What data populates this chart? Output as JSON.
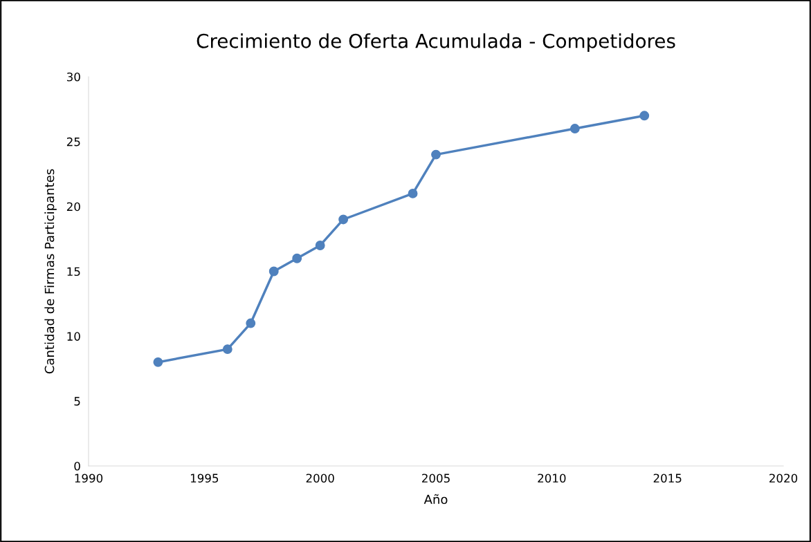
{
  "chart_data": {
    "type": "line",
    "title": "Crecimiento de Oferta Acumulada - Competidores",
    "xlabel": "Año",
    "ylabel": "Cantidad de Firmas Participantes",
    "x": [
      1993,
      1996,
      1997,
      1998,
      1999,
      2000,
      2001,
      2004,
      2005,
      2011,
      2014
    ],
    "series": [
      {
        "color": "#4f81bd",
        "values": [
          8,
          9,
          11,
          15,
          16,
          17,
          19,
          21,
          24,
          26,
          27
        ]
      }
    ],
    "xlim": [
      1990,
      2020
    ],
    "xticks": [
      1990,
      1995,
      2000,
      2005,
      2010,
      2015,
      2020
    ],
    "ylim": [
      0,
      30
    ],
    "yticks": [
      0,
      5,
      10,
      15,
      20,
      25,
      30
    ],
    "grid": false,
    "legend": false,
    "marker": "circle",
    "line_style": "solid"
  }
}
